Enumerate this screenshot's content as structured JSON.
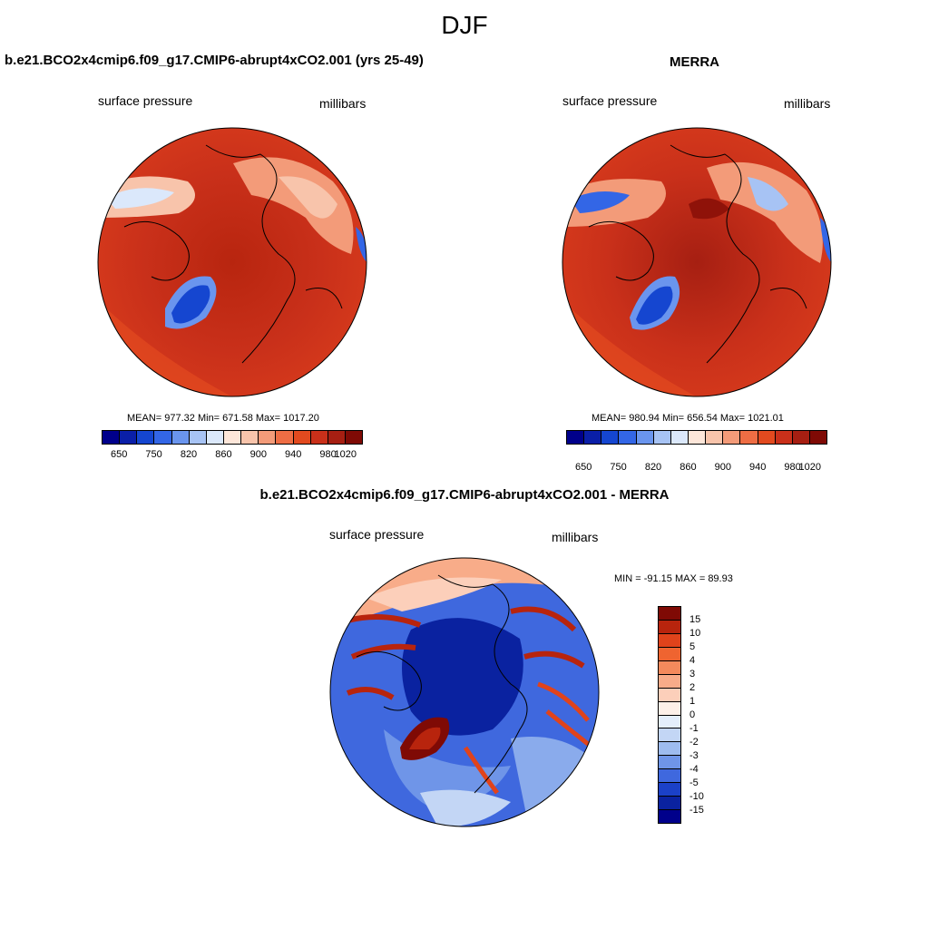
{
  "figure": {
    "season": "DJF"
  },
  "panels": {
    "model": {
      "title": "b.e21.BCO2x4cmip6.f09_g17.CMIP6-abrupt4xCO2.001 (yrs 25-49)",
      "left_label": "surface pressure",
      "right_label": "millibars",
      "stats": "MEAN= 977.32  Min= 671.58  Max= 1017.20",
      "colorbar_ticks": [
        "650",
        "750",
        "820",
        "860",
        "900",
        "940",
        "980",
        "1020"
      ]
    },
    "obs": {
      "title": "MERRA",
      "left_label": "surface pressure",
      "right_label": "millibars",
      "stats": "MEAN= 980.94  Min= 656.54  Max= 1021.01",
      "colorbar_ticks": [
        "650",
        "750",
        "820",
        "860",
        "900",
        "940",
        "980",
        "1020"
      ]
    },
    "diff": {
      "title": "b.e21.BCO2x4cmip6.f09_g17.CMIP6-abrupt4xCO2.001 - MERRA",
      "left_label": "surface pressure",
      "right_label": "millibars",
      "stats": "MIN = -91.15 MAX =  89.93",
      "colorbar_ticks": [
        "15",
        "10",
        "5",
        "4",
        "3",
        "2",
        "1",
        "0",
        "-1",
        "-2",
        "-3",
        "-4",
        "-5",
        "-10",
        "-15"
      ]
    }
  },
  "colors": {
    "abs_scale": [
      "#00008b",
      "#0a1fa8",
      "#1546d0",
      "#3366e6",
      "#6a95ee",
      "#a7c3f4",
      "#dbe8fb",
      "#fde6d9",
      "#f8c4ab",
      "#f39b79",
      "#ee6d44",
      "#e24a1f",
      "#c9301a",
      "#a61f12",
      "#7f0a05"
    ],
    "diff_scale": [
      "#7f0a05",
      "#b8240d",
      "#e0431b",
      "#ef6430",
      "#f48a5c",
      "#f8ac89",
      "#fccfba",
      "#fdf0e8",
      "#e4eefb",
      "#c3d6f5",
      "#9ebcef",
      "#6f95e8",
      "#3f68de",
      "#1b41c8",
      "#0a22a0",
      "#00008b"
    ]
  }
}
